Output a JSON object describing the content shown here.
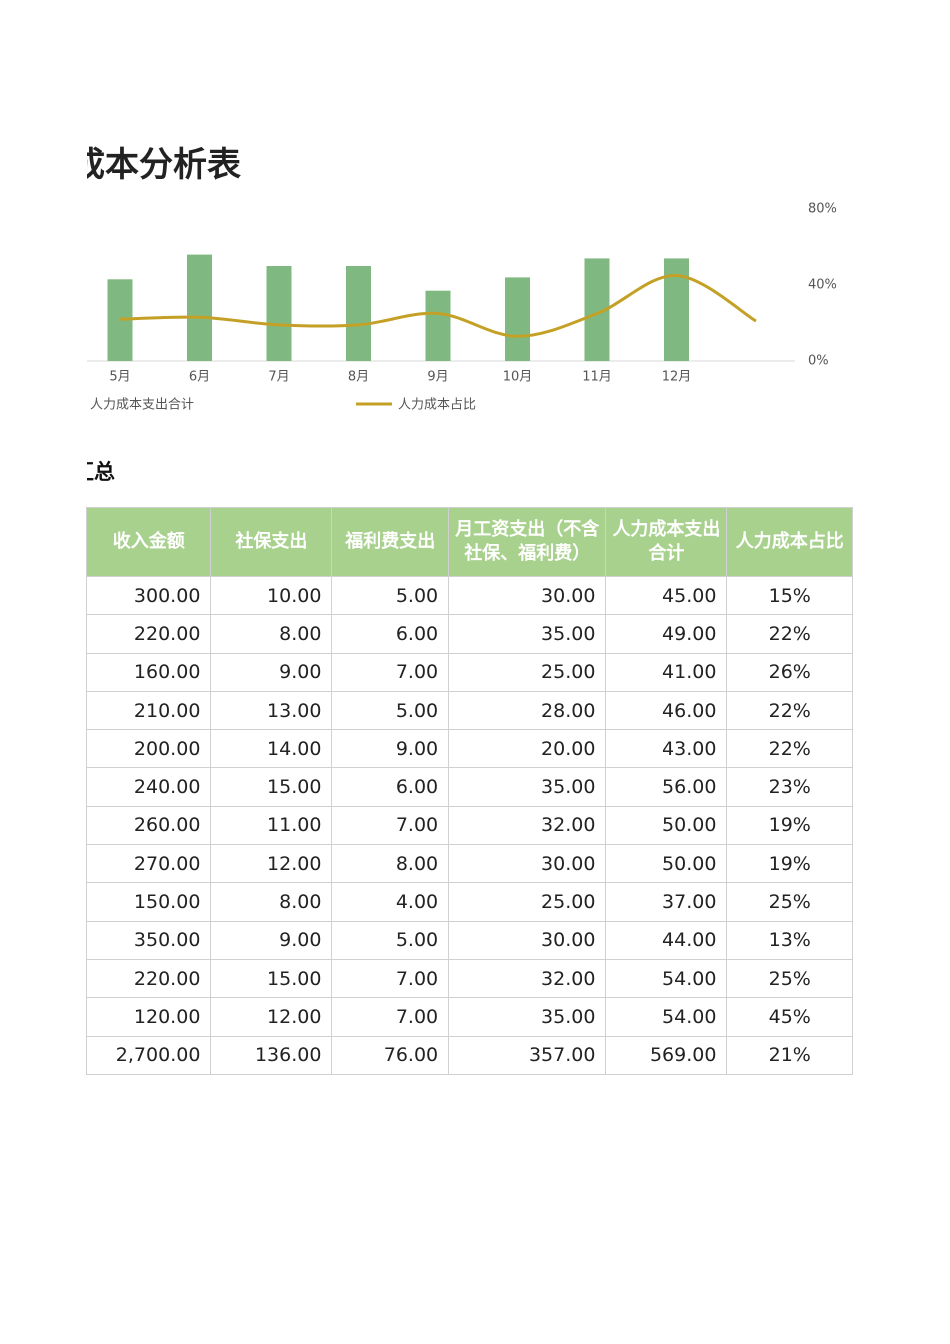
{
  "title": "成本分析表",
  "chart_data": {
    "type": "bar-line",
    "categories": [
      "5月",
      "6月",
      "7月",
      "8月",
      "9月",
      "10月",
      "11月",
      "12月",
      null
    ],
    "series": [
      {
        "name": "人力成本支出合计",
        "type": "bar",
        "color": "#7fb981",
        "values": [
          43,
          56,
          50,
          50,
          37,
          44,
          54,
          54,
          null
        ]
      },
      {
        "name": "人力成本占比",
        "type": "line",
        "axis": "y2",
        "color": "#c4a126",
        "values": [
          22,
          23,
          19,
          19,
          25,
          13,
          25,
          45,
          21
        ]
      }
    ],
    "ylim": [
      0,
      80
    ],
    "y2lim": [
      0,
      80
    ],
    "y2ticks": [
      {
        "value": 0,
        "label": "0%"
      },
      {
        "value": 40,
        "label": "40%"
      },
      {
        "value": 80,
        "label": "80%"
      }
    ]
  },
  "section_title": "汇总",
  "table": {
    "headers": [
      "收入金额",
      "社保支出",
      "福利费支出",
      "月工资支出（不含社保、福利费）",
      "人力成本支出合计",
      "人力成本占比"
    ],
    "rows": [
      [
        "300.00",
        "10.00",
        "5.00",
        "30.00",
        "45.00",
        "15%"
      ],
      [
        "220.00",
        "8.00",
        "6.00",
        "35.00",
        "49.00",
        "22%"
      ],
      [
        "160.00",
        "9.00",
        "7.00",
        "25.00",
        "41.00",
        "26%"
      ],
      [
        "210.00",
        "13.00",
        "5.00",
        "28.00",
        "46.00",
        "22%"
      ],
      [
        "200.00",
        "14.00",
        "9.00",
        "20.00",
        "43.00",
        "22%"
      ],
      [
        "240.00",
        "15.00",
        "6.00",
        "35.00",
        "56.00",
        "23%"
      ],
      [
        "260.00",
        "11.00",
        "7.00",
        "32.00",
        "50.00",
        "19%"
      ],
      [
        "270.00",
        "12.00",
        "8.00",
        "30.00",
        "50.00",
        "19%"
      ],
      [
        "150.00",
        "8.00",
        "4.00",
        "25.00",
        "37.00",
        "25%"
      ],
      [
        "350.00",
        "9.00",
        "5.00",
        "30.00",
        "44.00",
        "13%"
      ],
      [
        "220.00",
        "15.00",
        "7.00",
        "32.00",
        "54.00",
        "25%"
      ],
      [
        "120.00",
        "12.00",
        "7.00",
        "35.00",
        "54.00",
        "45%"
      ],
      [
        "2,700.00",
        "136.00",
        "76.00",
        "357.00",
        "569.00",
        "21%"
      ]
    ]
  }
}
